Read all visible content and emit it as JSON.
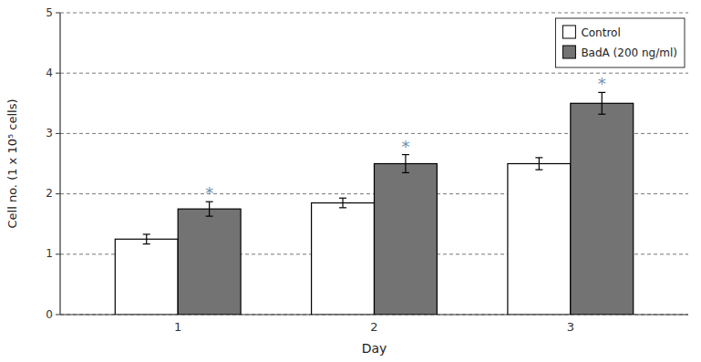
{
  "chart_data": {
    "type": "bar",
    "categories": [
      1,
      2,
      3
    ],
    "xlabel": "Day",
    "ylabel": "Cell no. (1 x 10⁵ cells)",
    "ylim": [
      0,
      5.0
    ],
    "yticks": [
      0,
      1,
      2,
      3,
      4,
      5
    ],
    "grid": true,
    "legend": "upper right",
    "series": [
      {
        "name": "Control",
        "color": "#ffffff",
        "values": [
          1.25,
          1.85,
          2.5
        ],
        "errors": [
          0.08,
          0.08,
          0.1
        ]
      },
      {
        "name": "BadA (200 ng/ml)",
        "color": "#737373",
        "values": [
          1.75,
          2.5,
          3.5
        ],
        "errors": [
          0.12,
          0.15,
          0.18
        ],
        "annotations": [
          {
            "text": "*",
            "color": "#7090b0"
          },
          {
            "text": "*",
            "color": "#7090b0"
          },
          {
            "text": "*",
            "color": "#7090b0"
          }
        ]
      }
    ]
  }
}
